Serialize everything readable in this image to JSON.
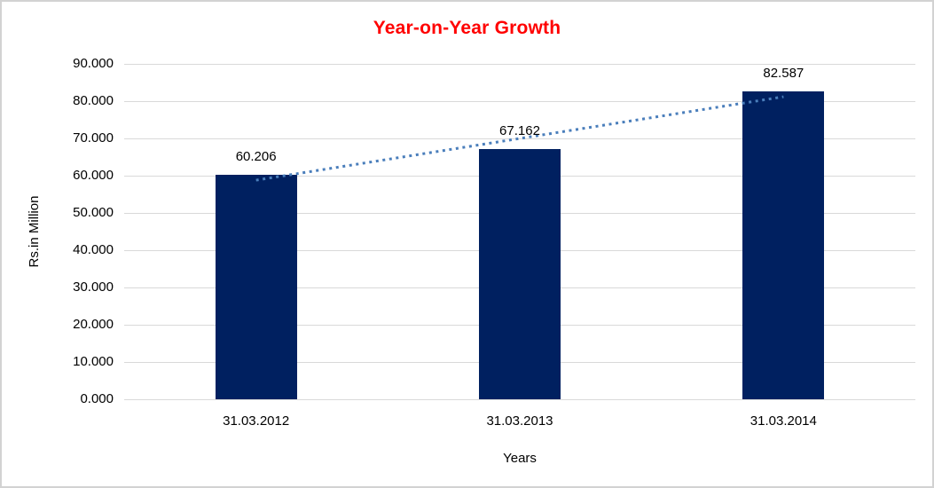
{
  "chart_data": {
    "type": "bar",
    "title": "Year-on-Year Growth",
    "title_color": "#ff0000",
    "categories": [
      "31.03.2012",
      "31.03.2013",
      "31.03.2014"
    ],
    "values": [
      60.206,
      67.162,
      82.587
    ],
    "data_labels": [
      "60.206",
      "67.162",
      "82.587"
    ],
    "xlabel": "Years",
    "ylabel": "Rs.in Million",
    "ylim": [
      0,
      90
    ],
    "y_tick_step": 10,
    "y_tick_labels": [
      "0.000",
      "10.000",
      "20.000",
      "30.000",
      "40.000",
      "50.000",
      "60.000",
      "70.000",
      "80.000",
      "90.000"
    ],
    "grid": true,
    "legend_position": "none",
    "bar_color": "#002060",
    "gridline_color": "#d9d9d9",
    "trendline": {
      "type": "linear",
      "style": "dotted",
      "color": "#4a7ebb"
    }
  }
}
